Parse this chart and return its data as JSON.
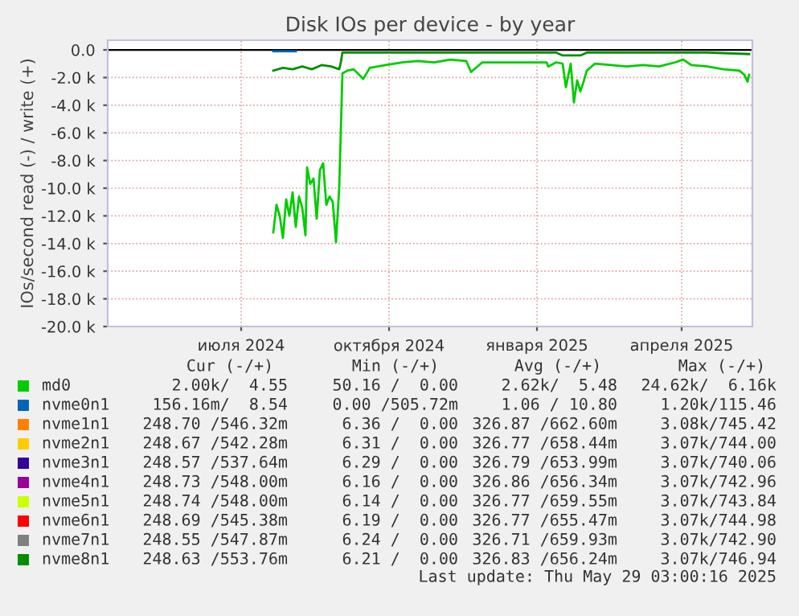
{
  "chart_data": {
    "type": "line",
    "title": "Disk IOs per device - by year",
    "ylabel": "IOs/second read (-) / write (+)",
    "xlim": [
      "2024-04-09",
      "2025-05-15"
    ],
    "xticks": [
      {
        "value": "2024-07-01",
        "label": "июля 2024"
      },
      {
        "value": "2024-10-01",
        "label": "октября 2024"
      },
      {
        "value": "2025-01-01",
        "label": "января 2025"
      },
      {
        "value": "2025-04-01",
        "label": "апреля 2025"
      }
    ],
    "ylim": [
      -20000,
      700
    ],
    "yticks": [
      {
        "value": 0,
        "label": "0.0"
      },
      {
        "value": -2000,
        "label": "-2.0 k"
      },
      {
        "value": -4000,
        "label": "-4.0 k"
      },
      {
        "value": -6000,
        "label": "-6.0 k"
      },
      {
        "value": -8000,
        "label": "-8.0 k"
      },
      {
        "value": -10000,
        "label": "-10.0 k"
      },
      {
        "value": -12000,
        "label": "-12.0 k"
      },
      {
        "value": -14000,
        "label": "-14.0 k"
      },
      {
        "value": -16000,
        "label": "-16.0 k"
      },
      {
        "value": -18000,
        "label": "-18.0 k"
      },
      {
        "value": -20000,
        "label": "-20.0 k"
      }
    ],
    "grid": true,
    "legend": "bottom",
    "marker": "none",
    "line_style": "solid",
    "ref_lines": [
      {
        "axis": "y",
        "value": 0,
        "color": "#000000"
      }
    ],
    "series": [
      {
        "name": "md0",
        "color": "#00cc00",
        "x": [
          "2024-07-21",
          "2024-07-23",
          "2024-07-25",
          "2024-07-27",
          "2024-07-29",
          "2024-07-31",
          "2024-08-02",
          "2024-08-04",
          "2024-08-06",
          "2024-08-08",
          "2024-08-10",
          "2024-08-11",
          "2024-08-13",
          "2024-08-15",
          "2024-08-17",
          "2024-08-19",
          "2024-08-21",
          "2024-08-23",
          "2024-08-25",
          "2024-08-27",
          "2024-08-29",
          "2024-08-31",
          "2024-09-02",
          "2024-09-05",
          "2024-09-09",
          "2024-09-15",
          "2024-09-19",
          "2024-09-29",
          "2024-10-09",
          "2024-10-19",
          "2024-10-29",
          "2024-11-08",
          "2024-11-18",
          "2024-11-21",
          "2024-11-28",
          "2024-12-18",
          "2025-01-07",
          "2025-01-08",
          "2025-01-13",
          "2025-01-17",
          "2025-01-19",
          "2025-01-22",
          "2025-01-24",
          "2025-01-26",
          "2025-01-28",
          "2025-01-30",
          "2025-02-01",
          "2025-02-06",
          "2025-02-16",
          "2025-02-26",
          "2025-03-08",
          "2025-03-18",
          "2025-03-28",
          "2025-04-02",
          "2025-04-07",
          "2025-04-17",
          "2025-04-27",
          "2025-05-07",
          "2025-05-10",
          "2025-05-12",
          "2025-05-13"
        ],
        "values": [
          -13200,
          -11200,
          -12000,
          -13600,
          -10800,
          -12000,
          -10300,
          -12800,
          -10600,
          -11400,
          -13400,
          -8500,
          -9700,
          -9300,
          -12200,
          -8700,
          -8200,
          -11200,
          -10600,
          -11000,
          -13900,
          -10000,
          -1700,
          -1500,
          -1400,
          -2100,
          -1300,
          -1100,
          -900,
          -800,
          -900,
          -700,
          -800,
          -1600,
          -900,
          -900,
          -900,
          -1200,
          -900,
          -1000,
          -2700,
          -1000,
          -3800,
          -2200,
          -3000,
          -2300,
          -1500,
          -1000,
          -1100,
          -1200,
          -1100,
          -1200,
          -900,
          -700,
          -1100,
          -1200,
          -1400,
          -1500,
          -1800,
          -2300,
          -1800
        ]
      },
      {
        "name": "nvme0n1",
        "color": "#0066b3",
        "x": [
          "2024-07-21",
          "2024-07-28",
          "2024-08-04"
        ],
        "values": [
          -100,
          -100,
          -100
        ]
      },
      {
        "name": "nvme1n1",
        "color": "#ff8000"
      },
      {
        "name": "nvme2n1",
        "color": "#ffcc00"
      },
      {
        "name": "nvme3n1",
        "color": "#330099"
      },
      {
        "name": "nvme4n1",
        "color": "#990099"
      },
      {
        "name": "nvme5n1",
        "color": "#ccff00"
      },
      {
        "name": "nvme6n1",
        "color": "#ff0000"
      },
      {
        "name": "nvme7n1",
        "color": "#808080"
      },
      {
        "name": "nvme8n1",
        "color": "#008f00",
        "x": [
          "2024-07-21",
          "2024-07-27",
          "2024-08-02",
          "2024-08-08",
          "2024-08-14",
          "2024-08-20",
          "2024-08-26",
          "2024-08-31",
          "2024-09-01",
          "2024-09-02",
          "2024-10-09",
          "2024-11-18",
          "2024-12-18",
          "2025-01-13",
          "2025-01-17",
          "2025-01-28",
          "2025-02-01",
          "2025-03-08",
          "2025-04-17",
          "2025-05-13"
        ],
        "values": [
          -1500,
          -1300,
          -1400,
          -1200,
          -1400,
          -1100,
          -1200,
          -1400,
          -900,
          -200,
          -200,
          -200,
          -200,
          -200,
          -400,
          -400,
          -200,
          -200,
          -200,
          -300
        ]
      }
    ],
    "annotations": [
      "Cur (-/+)",
      "Min (-/+)",
      "Avg (-/+)",
      "Max (-/+)",
      "2.00k/  4.55",
      "50.16 /  0.00",
      "2.62k/  5.48",
      "24.62k/  6.16k",
      "156.16m/  8.54",
      "0.00 /505.72m",
      "1.06 / 10.80",
      "1.20k/115.46",
      "248.70 /546.32m",
      "6.36 /  0.00",
      "326.87 /662.60m",
      "3.08k/745.42",
      "248.67 /542.28m",
      "6.31 /  0.00",
      "326.77 /658.44m",
      "3.07k/744.00",
      "248.57 /537.64m",
      "6.29 /  0.00",
      "326.79 /653.99m",
      "3.07k/740.06",
      "248.73 /548.00m",
      "6.16 /  0.00",
      "326.86 /656.34m",
      "3.07k/742.96",
      "248.74 /548.00m",
      "6.14 /  0.00",
      "326.77 /659.55m",
      "3.07k/743.84",
      "248.69 /545.38m",
      "6.19 /  0.00",
      "326.77 /655.47m",
      "3.07k/744.98",
      "248.55 /547.87m",
      "6.24 /  0.00",
      "326.71 /659.93m",
      "3.07k/742.90",
      "248.63 /553.76m",
      "6.21 /  0.00",
      "326.83 /656.24m",
      "3.07k/746.94",
      "Last update: Thu May 29 03:00:16 2025"
    ]
  }
}
